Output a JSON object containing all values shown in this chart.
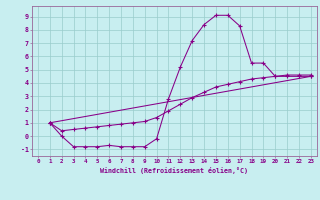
{
  "xlabel": "Windchill (Refroidissement éolien,°C)",
  "bg_color": "#c8eef0",
  "line_color": "#880088",
  "grid_color": "#99cccc",
  "spine_color": "#996699",
  "xlim": [
    -0.5,
    23.5
  ],
  "ylim": [
    -1.5,
    9.8
  ],
  "xticks": [
    0,
    1,
    2,
    3,
    4,
    5,
    6,
    7,
    8,
    9,
    10,
    11,
    12,
    13,
    14,
    15,
    16,
    17,
    18,
    19,
    20,
    21,
    22,
    23
  ],
  "yticks": [
    -1,
    0,
    1,
    2,
    3,
    4,
    5,
    6,
    7,
    8,
    9
  ],
  "line1_x": [
    1,
    2,
    3,
    4,
    5,
    6,
    7,
    8,
    9,
    10,
    11,
    12,
    13,
    14,
    15,
    16,
    17,
    18,
    19,
    20,
    21,
    22,
    23
  ],
  "line1_y": [
    1.0,
    0.0,
    -0.8,
    -0.8,
    -0.8,
    -0.7,
    -0.8,
    -0.8,
    -0.8,
    -0.2,
    2.8,
    5.2,
    7.2,
    8.4,
    9.1,
    9.1,
    8.3,
    5.5,
    5.5,
    4.5,
    4.6,
    4.6,
    4.6
  ],
  "line2_x": [
    1,
    2,
    3,
    4,
    5,
    6,
    7,
    8,
    9,
    10,
    11,
    12,
    13,
    14,
    15,
    16,
    17,
    18,
    19,
    20,
    21,
    22,
    23
  ],
  "line2_y": [
    1.0,
    0.4,
    0.5,
    0.6,
    0.7,
    0.8,
    0.9,
    1.0,
    1.1,
    1.4,
    1.9,
    2.4,
    2.9,
    3.3,
    3.7,
    3.9,
    4.1,
    4.3,
    4.4,
    4.5,
    4.5,
    4.5,
    4.5
  ],
  "line3_x": [
    1,
    23
  ],
  "line3_y": [
    1.0,
    4.5
  ]
}
